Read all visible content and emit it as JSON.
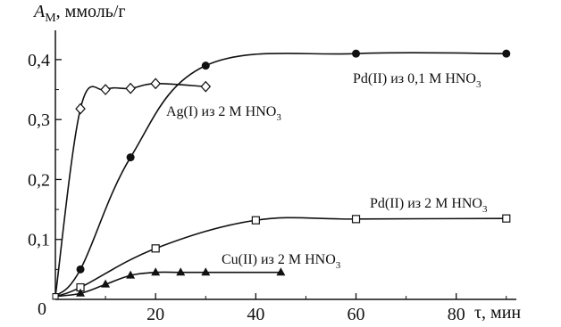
{
  "chart_data": {
    "type": "line",
    "ylabel": {
      "symbol": "A",
      "subscript": "М",
      "unit": ", ммоль/г"
    },
    "xlabel": "τ, мин",
    "xlim": [
      0,
      92
    ],
    "ylim": [
      0,
      0.44
    ],
    "xticks": [
      20,
      40,
      60,
      80
    ],
    "yticks": [
      0.1,
      0.2,
      0.3,
      0.4
    ],
    "ytick_labels": [
      "0,1",
      "0,2",
      "0,3",
      "0,4"
    ],
    "xtick_labels": [
      "20",
      "40",
      "60",
      "80"
    ],
    "origin_label": "0",
    "grid": false,
    "series": [
      {
        "name": "Pd(II) из 0,1 M HNO",
        "name_subscript": "3",
        "marker": "filled-circle",
        "x": [
          0,
          5,
          15,
          30,
          60,
          90
        ],
        "y": [
          0.005,
          0.05,
          0.237,
          0.39,
          0.41,
          0.41
        ]
      },
      {
        "name": "Ag(I) из 2 M HNO",
        "name_subscript": "3",
        "marker": "open-diamond",
        "x": [
          0,
          5,
          10,
          15,
          20,
          30
        ],
        "y": [
          0.005,
          0.318,
          0.35,
          0.352,
          0.36,
          0.355
        ]
      },
      {
        "name": "Pd(II) из 2 M HNO",
        "name_subscript": "3",
        "marker": "open-square",
        "x": [
          0,
          5,
          20,
          40,
          60,
          90
        ],
        "y": [
          0.005,
          0.02,
          0.085,
          0.132,
          0.134,
          0.135
        ]
      },
      {
        "name": "Cu(II) из 2 M HNO",
        "name_subscript": "3",
        "marker": "filled-triangle",
        "x": [
          0,
          5,
          10,
          15,
          20,
          25,
          30,
          45
        ],
        "y": [
          0.005,
          0.01,
          0.025,
          0.04,
          0.045,
          0.045,
          0.045,
          0.045
        ]
      }
    ]
  }
}
